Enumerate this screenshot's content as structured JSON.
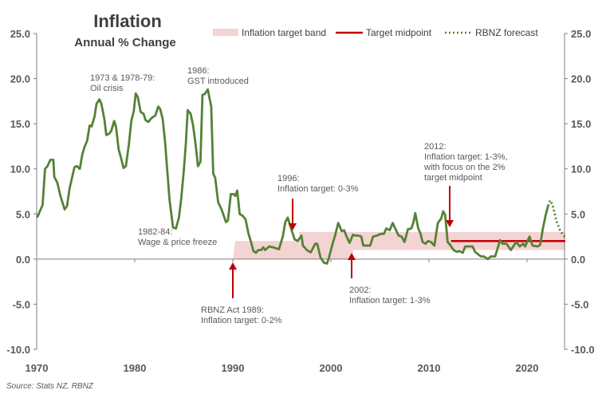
{
  "chart_data": {
    "type": "line",
    "title": "Inflation",
    "subtitle": "Annual % Change",
    "source": "Source: Stats NZ, RBNZ",
    "xlim": [
      1970,
      2024
    ],
    "ylim": [
      -10,
      25
    ],
    "x_ticks": [
      "1970",
      "1980",
      "1990",
      "2000",
      "2010",
      "2020"
    ],
    "y_ticks": [
      "-10.0",
      "-5.0",
      "0.0",
      "5.0",
      "10.0",
      "15.0",
      "20.0",
      "25.0"
    ],
    "grid": false,
    "legend_position": "top",
    "legend": [
      "Inflation target band",
      "Target midpoint",
      "RBNZ forecast"
    ],
    "colors": {
      "line": "#548235",
      "band": "#f4d3d3",
      "midpoint": "#c00000",
      "arrow": "#c00000"
    },
    "series": [
      {
        "x": [
          1970.05,
          1970.6,
          1970.85,
          1971.1,
          1971.4,
          1971.7,
          1971.8,
          1972.1,
          1972.45,
          1972.85,
          1973.1,
          1973.35,
          1973.85,
          1974.1,
          1974.4,
          1974.65,
          1974.9,
          1975.15,
          1975.4,
          1975.6,
          1975.9,
          1976.1,
          1976.4,
          1976.6,
          1976.9,
          1977.1,
          1977.4,
          1977.6,
          1977.9,
          1978.1,
          1978.35,
          1978.6,
          1978.85,
          1979.1,
          1979.4,
          1979.65,
          1979.9,
          1980.1,
          1980.3,
          1980.6,
          1980.9,
          1981.1,
          1981.4,
          1981.6,
          1981.9,
          1982.1,
          1982.4,
          1982.6,
          1982.85,
          1983.1,
          1983.3,
          1983.55,
          1983.9,
          1984.2,
          1984.5,
          1984.75,
          1985.0,
          1985.2,
          1985.4,
          1985.7,
          1985.95,
          1986.2,
          1986.45,
          1986.7,
          1986.9,
          1987.15,
          1987.45,
          1987.8,
          1988.0,
          1988.2,
          1988.5,
          1988.85,
          1989.3,
          1989.5,
          1989.8,
          1990.1,
          1990.25,
          1990.45,
          1990.7,
          1991.0,
          1991.3,
          1991.6,
          1991.85,
          1992.1,
          1992.35,
          1992.6,
          1992.9,
          1993.1,
          1993.3,
          1993.7,
          1994.1,
          1994.7,
          1995.1,
          1995.35,
          1995.6,
          1995.9,
          1996.3,
          1996.6,
          1997.0,
          1997.15,
          1997.55,
          1997.95,
          1998.4,
          1998.6,
          1998.95,
          1999.3,
          1999.6,
          1999.8,
          2000.15,
          2000.4,
          2000.75,
          2001.1,
          2001.35,
          2001.6,
          2001.9,
          2002.25,
          2002.5,
          2002.8,
          2003.1,
          2003.3,
          2003.75,
          2004.0,
          2004.3,
          2004.7,
          2005.1,
          2005.4,
          2005.65,
          2006.0,
          2006.3,
          2006.55,
          2006.9,
          2007.2,
          2007.5,
          2007.85,
          2008.2,
          2008.4,
          2008.6,
          2008.9,
          2009.15,
          2009.35,
          2009.65,
          2009.9,
          2010.2,
          2010.55,
          2010.9,
          2011.25,
          2011.45,
          2011.65,
          2011.9,
          2012.15,
          2012.5,
          2012.85,
          2013.1,
          2013.45,
          2013.7,
          2014.1,
          2014.45,
          2014.7,
          2015.05,
          2015.3,
          2015.6,
          2016.0,
          2016.3,
          2016.75,
          2017.25,
          2017.5,
          2017.9,
          2018.35,
          2018.9,
          2019.25,
          2019.6,
          2019.8,
          2020.25,
          2020.55,
          2021.1,
          2021.35,
          2021.6,
          2021.9,
          2022.15
        ],
        "y": [
          4.6,
          6.0,
          10.0,
          10.3,
          11.0,
          11.0,
          9.1,
          8.5,
          6.9,
          5.5,
          5.9,
          7.8,
          10.2,
          10.3,
          10.0,
          11.6,
          12.5,
          13.1,
          14.8,
          14.7,
          15.8,
          17.2,
          17.7,
          17.2,
          15.5,
          13.75,
          13.9,
          14.2,
          15.3,
          14.6,
          12.2,
          11.2,
          10.1,
          10.3,
          12.7,
          15.3,
          16.4,
          18.35,
          18.0,
          16.3,
          16.1,
          15.4,
          15.2,
          15.5,
          15.8,
          15.9,
          16.9,
          16.6,
          15.5,
          12.9,
          10.0,
          6.5,
          3.5,
          3.4,
          4.6,
          6.8,
          9.8,
          12.7,
          16.5,
          16.1,
          14.8,
          12.7,
          10.3,
          10.8,
          18.2,
          18.3,
          18.8,
          16.9,
          9.5,
          9.0,
          6.3,
          5.5,
          4.1,
          4.3,
          7.2,
          7.2,
          7.0,
          7.6,
          5.0,
          4.8,
          4.4,
          2.8,
          1.9,
          0.9,
          0.7,
          1.0,
          1.0,
          1.3,
          1.0,
          1.4,
          1.3,
          1.1,
          2.5,
          4.1,
          4.6,
          3.5,
          2.2,
          2.0,
          2.6,
          1.5,
          1.0,
          0.75,
          1.7,
          1.7,
          0.15,
          -0.4,
          -0.5,
          0.15,
          1.6,
          2.5,
          4.0,
          3.1,
          3.2,
          2.5,
          1.8,
          2.7,
          2.6,
          2.6,
          2.5,
          1.5,
          1.5,
          1.5,
          2.5,
          2.6,
          2.8,
          2.8,
          3.4,
          3.2,
          4.0,
          3.4,
          2.6,
          2.5,
          1.9,
          3.3,
          3.4,
          4.0,
          5.1,
          3.4,
          2.8,
          1.9,
          1.7,
          2.0,
          1.9,
          1.5,
          4.0,
          4.5,
          5.3,
          4.9,
          1.9,
          1.6,
          1.0,
          0.8,
          0.9,
          0.7,
          1.4,
          1.4,
          1.4,
          0.8,
          0.5,
          0.3,
          0.3,
          0.0,
          0.3,
          0.3,
          2.1,
          1.7,
          1.7,
          1.0,
          1.9,
          1.4,
          1.7,
          1.4,
          2.5,
          1.5,
          1.4,
          1.6,
          3.3,
          4.9,
          5.9
        ]
      },
      {
        "name": "RBNZ forecast",
        "x": [
          2022.15,
          2022.35,
          2022.6,
          2023.0,
          2023.4,
          2023.9
        ],
        "y": [
          5.9,
          6.5,
          6.0,
          4.2,
          3.1,
          2.4
        ]
      }
    ],
    "target_band": [
      {
        "from": 1990.0,
        "to": 1996.75,
        "low": 0,
        "high": 2
      },
      {
        "from": 1996.75,
        "to": 2002.25,
        "low": 0,
        "high": 3
      },
      {
        "from": 2002.25,
        "to": 2023.9,
        "low": 1,
        "high": 3
      }
    ],
    "target_midpoint": {
      "from": 2012.25,
      "to": 2023.9,
      "value": 2
    },
    "annotations": [
      {
        "year": 1973,
        "lines": [
          "1973 & 1978-79:",
          "Oil crisis"
        ]
      },
      {
        "year": 1986,
        "lines": [
          "1986:",
          "GST introduced"
        ]
      },
      {
        "year": 1982,
        "lines": [
          "1982-84:",
          "Wage & price freeze"
        ]
      },
      {
        "year": 1996,
        "lines": [
          "1996:",
          "Inflation target: 0-3%"
        ],
        "arrow": "down"
      },
      {
        "year": 2012,
        "lines": [
          "2012:",
          "Inflation target: 1-3%,",
          "with focus on the 2%",
          "target midpoint"
        ],
        "arrow": "down"
      },
      {
        "year": 1990,
        "lines": [
          "RBNZ Act 1989:",
          "Inflation target: 0-2%"
        ],
        "arrow": "up"
      },
      {
        "year": 2002,
        "lines": [
          "2002:",
          "Inflation target: 1-3%"
        ],
        "arrow": "up"
      }
    ]
  }
}
